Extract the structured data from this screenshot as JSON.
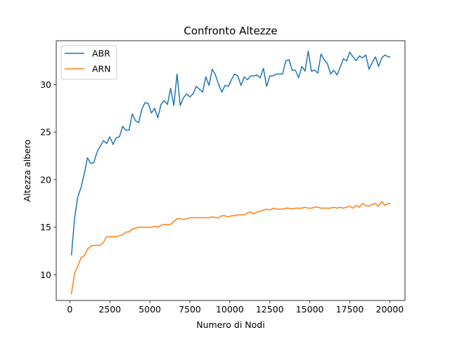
{
  "chart_data": {
    "type": "line",
    "title": "Confronto Altezze",
    "xlabel": "Numero di Nodi",
    "ylabel": "Altezza albero",
    "xlim": [
      -850,
      20950
    ],
    "ylim": [
      7.3,
      34.6
    ],
    "xticks": [
      0,
      2500,
      5000,
      7500,
      10000,
      12500,
      15000,
      17500,
      20000
    ],
    "yticks": [
      10,
      15,
      20,
      25,
      30
    ],
    "legend_position": "top-left",
    "grid": false,
    "x": [
      100,
      300,
      500,
      700,
      900,
      1100,
      1300,
      1500,
      1700,
      1900,
      2100,
      2300,
      2500,
      2700,
      2900,
      3100,
      3300,
      3500,
      3700,
      3900,
      4100,
      4300,
      4500,
      4700,
      4900,
      5100,
      5300,
      5500,
      5700,
      5900,
      6100,
      6300,
      6500,
      6700,
      6900,
      7100,
      7300,
      7500,
      7700,
      7900,
      8100,
      8300,
      8500,
      8700,
      8900,
      9100,
      9300,
      9500,
      9700,
      9900,
      10100,
      10300,
      10500,
      10700,
      10900,
      11100,
      11300,
      11500,
      11700,
      11900,
      12100,
      12300,
      12500,
      12700,
      12900,
      13100,
      13300,
      13500,
      13700,
      13900,
      14100,
      14300,
      14500,
      14700,
      14900,
      15100,
      15300,
      15500,
      15700,
      15900,
      16100,
      16300,
      16500,
      16700,
      16900,
      17100,
      17300,
      17500,
      17700,
      17900,
      18100,
      18300,
      18500,
      18700,
      18900,
      19100,
      19300,
      19500,
      19700,
      19900,
      20000
    ],
    "series": [
      {
        "name": "ABR",
        "color": "#1f77b4",
        "values": [
          12.1,
          16.0,
          18.2,
          19.2,
          20.6,
          22.3,
          21.7,
          21.8,
          22.9,
          23.5,
          24.1,
          23.8,
          24.5,
          23.7,
          24.4,
          24.5,
          25.6,
          25.2,
          25.2,
          26.9,
          26.2,
          26.0,
          27.4,
          28.1,
          28.0,
          27.0,
          27.5,
          26.5,
          27.9,
          28.3,
          27.9,
          29.6,
          27.8,
          31.1,
          27.8,
          28.6,
          29.0,
          28.7,
          29.0,
          29.8,
          29.5,
          29.2,
          30.8,
          29.9,
          31.6,
          31.0,
          30.0,
          29.2,
          29.9,
          29.8,
          30.5,
          31.1,
          30.9,
          29.9,
          30.8,
          30.5,
          30.9,
          30.9,
          31.0,
          30.7,
          31.7,
          29.8,
          30.9,
          30.9,
          31.1,
          31.1,
          31.1,
          32.5,
          32.6,
          31.5,
          31.5,
          30.7,
          31.9,
          31.4,
          33.5,
          31.4,
          31.5,
          31.2,
          33.2,
          32.6,
          32.2,
          31.1,
          31.5,
          31.0,
          31.8,
          32.7,
          32.5,
          33.4,
          32.9,
          32.5,
          33.0,
          32.8,
          33.1,
          31.6,
          32.3,
          32.9,
          31.9,
          32.8,
          33.1,
          32.9,
          32.9
        ]
      },
      {
        "name": "ARN",
        "color": "#ff7f0e",
        "values": [
          8.0,
          10.2,
          10.9,
          11.8,
          12.0,
          12.7,
          13.0,
          13.1,
          13.1,
          13.1,
          13.4,
          14.0,
          14.0,
          14.0,
          14.0,
          14.1,
          14.2,
          14.5,
          14.5,
          14.8,
          14.9,
          15.0,
          15.0,
          15.0,
          15.0,
          15.0,
          15.1,
          15.0,
          15.2,
          15.3,
          15.3,
          15.3,
          15.6,
          15.9,
          15.9,
          15.8,
          15.9,
          16.0,
          16.0,
          16.0,
          16.0,
          16.0,
          16.0,
          16.0,
          16.1,
          16.0,
          16.0,
          16.2,
          16.2,
          16.1,
          16.2,
          16.2,
          16.3,
          16.3,
          16.3,
          16.5,
          16.6,
          16.4,
          16.6,
          16.7,
          16.8,
          16.9,
          16.8,
          17.0,
          16.9,
          16.9,
          16.9,
          17.0,
          17.0,
          16.9,
          17.0,
          17.0,
          17.0,
          17.1,
          17.0,
          17.0,
          17.1,
          17.1,
          17.0,
          17.0,
          17.0,
          17.0,
          17.1,
          17.0,
          17.1,
          17.0,
          17.1,
          17.2,
          17.0,
          17.3,
          17.1,
          17.5,
          17.3,
          17.2,
          17.4,
          17.5,
          17.2,
          17.7,
          17.3,
          17.5,
          17.5
        ]
      }
    ]
  }
}
